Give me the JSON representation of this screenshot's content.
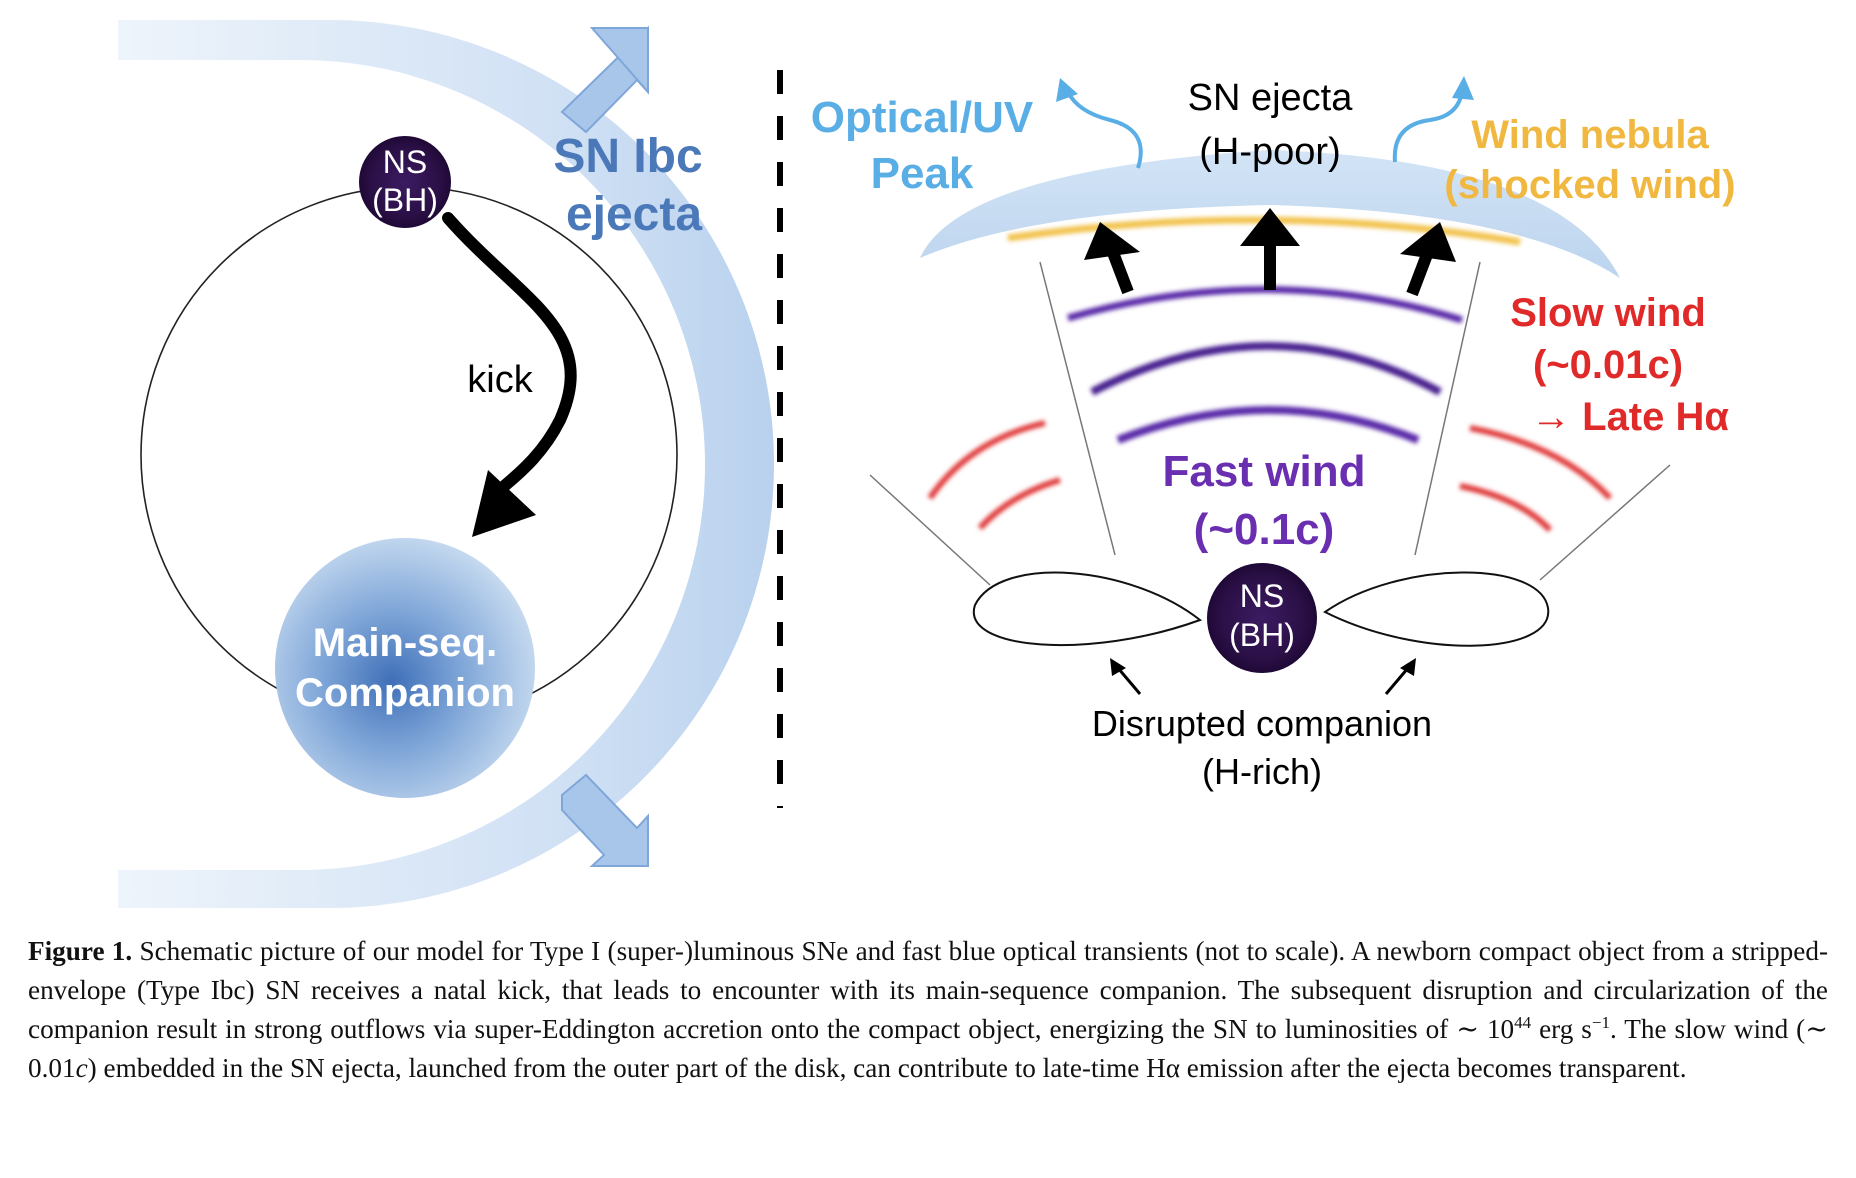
{
  "left_panel": {
    "ns_label_line1": "NS",
    "ns_label_line2": "(BH)",
    "kick_label": "kick",
    "ejecta_label_line1": "SN Ibc",
    "ejecta_label_line2": "ejecta",
    "companion_line1": "Main-seq.",
    "companion_line2": "Companion"
  },
  "right_panel": {
    "optical_line1": "Optical/UV",
    "optical_line2": "Peak",
    "sn_ejecta_line1": "SN ejecta",
    "sn_ejecta_line2": "(H-poor)",
    "wind_nebula_line1": "Wind nebula",
    "wind_nebula_line2": "(shocked wind)",
    "slow_wind_line1": "Slow wind",
    "slow_wind_line2": "(~0.01c)",
    "slow_wind_line3": "→ Late Hα",
    "fast_wind_line1": "Fast wind",
    "fast_wind_line2": "(~0.1c)",
    "ns_label_line1": "NS",
    "ns_label_line2": "(BH)",
    "disrupted_line1": "Disrupted companion",
    "disrupted_line2": "(H-rich)"
  },
  "colors": {
    "optical": "#5aaee6",
    "wind_nebula": "#f0b840",
    "slow_wind": "#e02a2a",
    "fast_wind": "#6a2eb0",
    "ejecta_label": "#4a78b8",
    "ns_fill": "#2a0f45"
  },
  "caption": {
    "figure_label": "Figure 1.",
    "text_a": " Schematic picture of our model for Type I (super-)luminous SNe and fast blue optical transients (not to scale). A newborn compact object from a stripped-envelope (Type Ibc) SN receives a natal kick, that leads to encounter with its main-sequence companion. The subsequent disruption and circularization of the companion result in strong outflows via super-Eddington accretion onto the compact object, energizing the SN to luminosities of ∼ 10",
    "sup_exp": "44",
    "text_b": " erg s",
    "sup_neg": "−1",
    "text_c": ". The slow wind (∼ 0.01",
    "c_symbol": "c",
    "text_d": ") embedded in the SN ejecta, launched from the outer part of the disk, can contribute to late-time Hα emission after the ejecta becomes transparent."
  }
}
